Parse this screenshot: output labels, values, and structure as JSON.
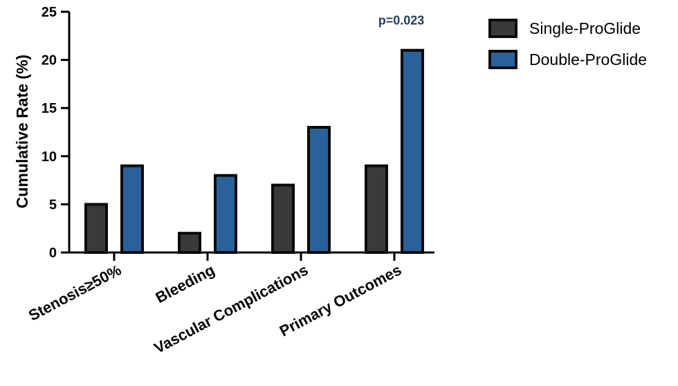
{
  "chart_data": {
    "type": "bar",
    "ylabel": "Cumulative Rate (%)",
    "ylim": [
      0,
      25
    ],
    "yticks": [
      "0",
      "5",
      "10",
      "15",
      "20",
      "25"
    ],
    "categories": [
      "Stenosis≥50%",
      "Bleeding",
      "Vascular Complications",
      "Primary Outcomes"
    ],
    "series": [
      {
        "name": "Single-ProGlide",
        "values": [
          5,
          2,
          7,
          9
        ],
        "color": "#3a3a3a"
      },
      {
        "name": "Double-ProGlide",
        "values": [
          9,
          8,
          13,
          21
        ],
        "color": "#2a6199"
      }
    ],
    "annotations": [
      {
        "text": "p=0.023",
        "category": "Primary Outcomes",
        "color": "#23405e"
      }
    ],
    "legend_position": "top-right",
    "grid": false
  }
}
